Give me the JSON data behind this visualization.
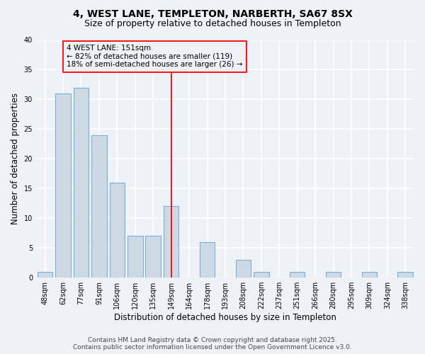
{
  "title": "4, WEST LANE, TEMPLETON, NARBERTH, SA67 8SX",
  "subtitle": "Size of property relative to detached houses in Templeton",
  "xlabel": "Distribution of detached houses by size in Templeton",
  "ylabel": "Number of detached properties",
  "bin_labels": [
    "48sqm",
    "62sqm",
    "77sqm",
    "91sqm",
    "106sqm",
    "120sqm",
    "135sqm",
    "149sqm",
    "164sqm",
    "178sqm",
    "193sqm",
    "208sqm",
    "222sqm",
    "237sqm",
    "251sqm",
    "266sqm",
    "280sqm",
    "295sqm",
    "309sqm",
    "324sqm",
    "338sqm"
  ],
  "bar_heights": [
    1,
    31,
    32,
    24,
    16,
    7,
    7,
    12,
    0,
    6,
    0,
    3,
    1,
    0,
    1,
    0,
    1,
    0,
    1,
    0,
    1
  ],
  "bar_color": "#cdd9e5",
  "bar_edge_color": "#7bafd4",
  "ylim": [
    0,
    40
  ],
  "yticks": [
    0,
    5,
    10,
    15,
    20,
    25,
    30,
    35,
    40
  ],
  "vline_x": 7,
  "annotation_title": "4 WEST LANE: 151sqm",
  "annotation_line1": "← 82% of detached houses are smaller (119)",
  "annotation_line2": "18% of semi-detached houses are larger (26) →",
  "footer1": "Contains HM Land Registry data © Crown copyright and database right 2025.",
  "footer2": "Contains public sector information licensed under the Open Government Licence v3.0.",
  "bg_color": "#eef2f7",
  "grid_color": "#ffffff",
  "title_fontsize": 10,
  "subtitle_fontsize": 9,
  "axis_label_fontsize": 8.5,
  "tick_fontsize": 7,
  "annotation_fontsize": 7.5,
  "footer_fontsize": 6.5
}
